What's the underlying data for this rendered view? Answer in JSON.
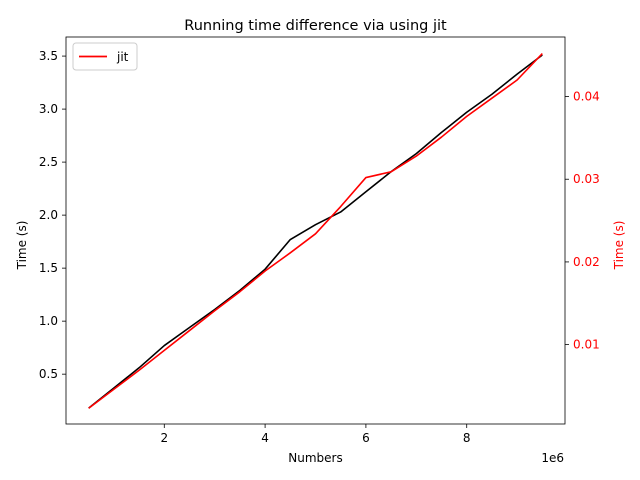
{
  "chart_data": {
    "type": "line",
    "title": "Running time difference via using jit",
    "xlabel": "Numbers",
    "x_offset_label": "1e6",
    "ylabel_left": "Time (s)",
    "ylabel_right": "Time (s)",
    "xlim": [
      50000,
      9950000
    ],
    "ylim_left": [
      0.03,
      3.68
    ],
    "ylim_right": [
      0.0004,
      0.0472
    ],
    "x_ticks": [
      2000000,
      4000000,
      6000000,
      8000000
    ],
    "x_tick_labels": [
      "2",
      "4",
      "6",
      "8"
    ],
    "y_left_ticks": [
      0.5,
      1.0,
      1.5,
      2.0,
      2.5,
      3.0,
      3.5
    ],
    "y_left_tick_labels": [
      "0.5",
      "1.0",
      "1.5",
      "2.0",
      "2.5",
      "3.0",
      "3.5"
    ],
    "y_right_ticks": [
      0.01,
      0.02,
      0.03,
      0.04
    ],
    "y_right_tick_labels": [
      "0.01",
      "0.02",
      "0.03",
      "0.04"
    ],
    "grid": false,
    "legend_position": "top-left",
    "series": [
      {
        "axis": "left",
        "color": "#000000",
        "points": [
          [
            500000,
            0.18
          ],
          [
            1000000,
            0.37
          ],
          [
            1500000,
            0.56
          ],
          [
            2000000,
            0.77
          ],
          [
            2500000,
            0.94
          ],
          [
            3000000,
            1.11
          ],
          [
            3500000,
            1.29
          ],
          [
            4000000,
            1.49
          ],
          [
            4500000,
            1.77
          ],
          [
            5000000,
            1.91
          ],
          [
            5500000,
            2.03
          ],
          [
            6000000,
            2.22
          ],
          [
            6500000,
            2.41
          ],
          [
            7000000,
            2.58
          ],
          [
            7500000,
            2.78
          ],
          [
            8000000,
            2.97
          ],
          [
            8500000,
            3.14
          ],
          [
            9000000,
            3.33
          ],
          [
            9500000,
            3.51
          ]
        ]
      },
      {
        "name": "jit",
        "axis": "right",
        "color": "#ff0000",
        "points": [
          [
            500000,
            0.0023
          ],
          [
            1000000,
            0.0046
          ],
          [
            1500000,
            0.0069
          ],
          [
            2000000,
            0.0093
          ],
          [
            2500000,
            0.0117
          ],
          [
            3000000,
            0.0141
          ],
          [
            3500000,
            0.0164
          ],
          [
            4000000,
            0.0189
          ],
          [
            4500000,
            0.0211
          ],
          [
            5000000,
            0.0234
          ],
          [
            5500000,
            0.0267
          ],
          [
            6000000,
            0.0302
          ],
          [
            6500000,
            0.0309
          ],
          [
            7000000,
            0.0328
          ],
          [
            7500000,
            0.0351
          ],
          [
            8000000,
            0.0376
          ],
          [
            8500000,
            0.0398
          ],
          [
            9000000,
            0.042
          ],
          [
            9500000,
            0.0452
          ]
        ]
      }
    ]
  }
}
